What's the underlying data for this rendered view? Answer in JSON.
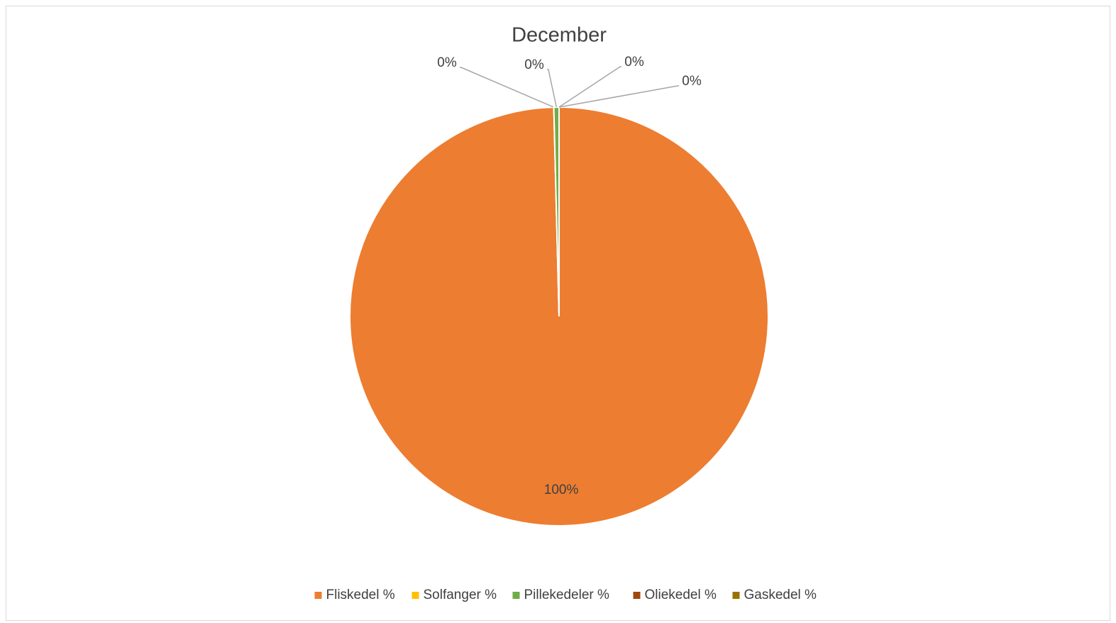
{
  "chart_data": {
    "type": "pie",
    "title": "December",
    "categories": [
      "Fliskedel %",
      "Solfanger %",
      "Pillekedeler %",
      "Oliekedel %",
      "Gaskedel %"
    ],
    "values": [
      99.6,
      0,
      0.4,
      0,
      0
    ],
    "value_labels": [
      "100%",
      "0%",
      "0%",
      "0%",
      "0%"
    ],
    "colors": [
      "#ed7d31",
      "#ffc000",
      "#70ad47",
      "#9e480e",
      "#997300"
    ],
    "legend": "bottom"
  }
}
